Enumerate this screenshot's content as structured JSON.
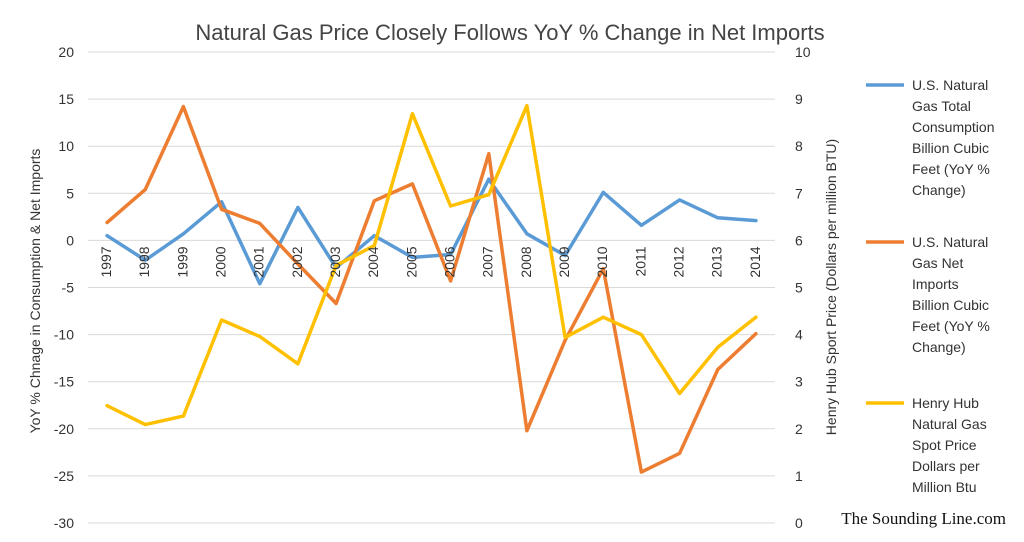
{
  "chart_data": {
    "type": "line",
    "title": "Natural Gas Price Closely Follows YoY % Change in Net Imports",
    "x": [
      "1997",
      "1998",
      "1999",
      "2000",
      "2001",
      "2002",
      "2003",
      "2004",
      "2005",
      "2006",
      "2007",
      "2008",
      "2009",
      "2010",
      "2011",
      "2012",
      "2013",
      "2014"
    ],
    "ylabel": "YoY % Chnage in Consumption & Net Imports",
    "y2label": "Henry Hub Sport Price (Dollars per million BTU)",
    "ylim": [
      -30,
      20
    ],
    "y2lim": [
      0,
      10
    ],
    "yticks": [
      "20",
      "15",
      "10",
      "5",
      "0",
      "-5",
      "-10",
      "-15",
      "-20",
      "-25",
      "-30"
    ],
    "y2ticks": [
      "10",
      "9",
      "8",
      "7",
      "6",
      "5",
      "4",
      "3",
      "2",
      "1",
      "0"
    ],
    "grid": true,
    "legend_position": "right",
    "series": [
      {
        "name": "U.S. Natural Gas Total Consumption Billion Cubic Feet (YoY % Change)",
        "legend_lines": [
          "U.S. Natural",
          "Gas Total",
          "Consumption",
          "Billion Cubic",
          "Feet (YoY %",
          "Change)"
        ],
        "axis": "left",
        "color": "#5b9bd5",
        "values": [
          0.5,
          -2.1,
          0.7,
          4.1,
          -4.6,
          3.5,
          -2.9,
          0.5,
          -1.8,
          -1.5,
          6.5,
          0.7,
          -1.6,
          5.1,
          1.6,
          4.3,
          2.4,
          2.1
        ]
      },
      {
        "name": "U.S. Natural Gas Net Imports Billion Cubic Feet (YoY % Change)",
        "legend_lines": [
          "U.S. Natural",
          "Gas Net",
          "Imports",
          "Billion Cubic",
          "Feet (YoY %",
          "Change)"
        ],
        "axis": "left",
        "color": "#ed7d31",
        "values": [
          1.9,
          5.4,
          14.2,
          3.3,
          1.8,
          -2.5,
          -6.7,
          4.2,
          6.0,
          -4.3,
          9.2,
          -20.2,
          -10.6,
          -3.0,
          -24.6,
          -22.6,
          -13.7,
          -9.9
        ]
      },
      {
        "name": "Henry Hub Natural Gas Spot Price Dollars per Million Btu",
        "legend_lines": [
          "Henry Hub",
          "Natural Gas",
          "Spot Price",
          "Dollars per",
          "Million Btu"
        ],
        "axis": "right",
        "color": "#ffc000",
        "values": [
          2.49,
          2.09,
          2.27,
          4.31,
          3.96,
          3.38,
          5.47,
          5.89,
          8.69,
          6.73,
          6.97,
          8.86,
          3.94,
          4.37,
          4.0,
          2.75,
          3.73,
          4.37
        ]
      }
    ]
  },
  "watermark": "The Sounding Line.com"
}
